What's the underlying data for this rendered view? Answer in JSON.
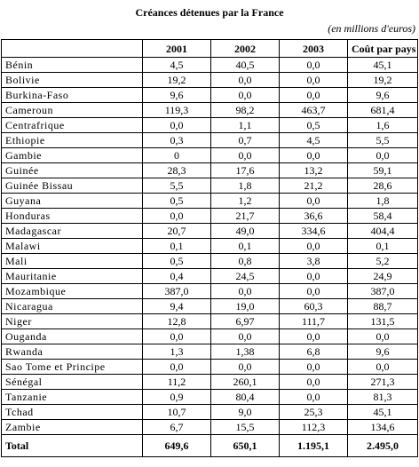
{
  "title": "Créances détenues par la France",
  "subtitle": "(en millions d'euros)",
  "table": {
    "header": [
      "2001",
      "2002",
      "2003",
      "Coût par pays"
    ],
    "rows": [
      [
        "Bénin",
        "4,5",
        "40,5",
        "0,0",
        "45,1"
      ],
      [
        "Bolivie",
        "19,2",
        "0,0",
        "0,0",
        "19,2"
      ],
      [
        "Burkina-Faso",
        "9,6",
        "0,0",
        "0,0",
        "9,6"
      ],
      [
        "Cameroun",
        "119,3",
        "98,2",
        "463,7",
        "681,4"
      ],
      [
        "Centrafrique",
        "0,0",
        "1,1",
        "0,5",
        "1,6"
      ],
      [
        "Ethiopie",
        "0,3",
        "0,7",
        "4,5",
        "5,5"
      ],
      [
        "Gambie",
        "0",
        "0,0",
        "0,0",
        "0,0"
      ],
      [
        "Guinée",
        "28,3",
        "17,6",
        "13,2",
        "59,1"
      ],
      [
        "Guinée Bissau",
        "5,5",
        "1,8",
        "21,2",
        "28,6"
      ],
      [
        "Guyana",
        "0,5",
        "1,2",
        "0,0",
        "1,8"
      ],
      [
        "Honduras",
        "0,0",
        "21,7",
        "36,6",
        "58,4"
      ],
      [
        "Madagascar",
        "20,7",
        "49,0",
        "334,6",
        "404,4"
      ],
      [
        "Malawi",
        "0,1",
        "0,1",
        "0,0",
        "0,1"
      ],
      [
        "Mali",
        "0,5",
        "0,8",
        "3,8",
        "5,2"
      ],
      [
        "Mauritanie",
        "0,4",
        "24,5",
        "0,0",
        "24,9"
      ],
      [
        "Mozambique",
        "387,0",
        "0,0",
        "0,0",
        "387,0"
      ],
      [
        "Nicaragua",
        "9,4",
        "19,0",
        "60,3",
        "88,7"
      ],
      [
        "Niger",
        "12,8",
        "6,97",
        "111,7",
        "131,5"
      ],
      [
        "Ouganda",
        "0,0",
        "0,0",
        "0,0",
        "0,0"
      ],
      [
        "Rwanda",
        "1,3",
        "1,38",
        "6,8",
        "9,6"
      ],
      [
        "Sao Tome et Principe",
        "0,0",
        "0,0",
        "0,0",
        "0,0"
      ],
      [
        "Sénégal",
        "11,2",
        "260,1",
        "0,0",
        "271,3"
      ],
      [
        "Tanzanie",
        "0,9",
        "80,4",
        "0,0",
        "81,3"
      ],
      [
        "Tchad",
        "10,7",
        "9,0",
        "25,3",
        "45,1"
      ],
      [
        "Zambie",
        "6,7",
        "15,5",
        "112,3",
        "134,6"
      ]
    ],
    "total": [
      "Total",
      "649,6",
      "650,1",
      "1.195,1",
      "2.495,0"
    ]
  }
}
